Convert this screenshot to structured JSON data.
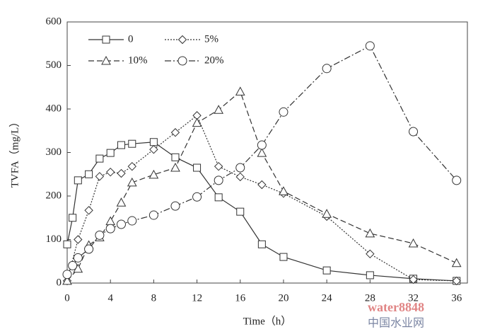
{
  "chart_data": {
    "type": "line",
    "x_label": "Time（h）",
    "y_label": "TVFA（mg/L）",
    "xlim": [
      0,
      37
    ],
    "xticks": [
      0,
      4,
      8,
      12,
      16,
      20,
      24,
      28,
      32,
      36
    ],
    "ylim": [
      0,
      600
    ],
    "yticks": [
      0,
      100,
      200,
      300,
      400,
      500,
      600
    ],
    "series": [
      {
        "name": "0",
        "color": "#333333",
        "marker": "square",
        "dash": "solid",
        "x": [
          0,
          0.5,
          1,
          2,
          3,
          4,
          5,
          6,
          8,
          10,
          12,
          14,
          16,
          18,
          20,
          24,
          28,
          32,
          36
        ],
        "values": [
          89,
          150,
          236,
          250,
          286,
          299,
          317,
          320,
          324,
          289,
          265,
          197,
          164,
          89,
          60,
          29,
          18,
          10,
          5
        ]
      },
      {
        "name": "5%",
        "color": "#333333",
        "marker": "diamond",
        "dash": "dot",
        "x": [
          0,
          1,
          2,
          3,
          4,
          5,
          6,
          8,
          10,
          12,
          14,
          16,
          18,
          20,
          24,
          28,
          32,
          36
        ],
        "values": [
          5,
          100,
          167,
          245,
          255,
          252,
          268,
          307,
          346,
          385,
          268,
          244,
          226,
          206,
          153,
          67,
          8,
          5
        ]
      },
      {
        "name": "10%",
        "color": "#333333",
        "marker": "triangle",
        "dash": "dash",
        "x": [
          0,
          1,
          2,
          3,
          4,
          5,
          6,
          8,
          10,
          12,
          14,
          16,
          18,
          20,
          24,
          28,
          32,
          36
        ],
        "values": [
          5,
          33,
          87,
          105,
          142,
          185,
          231,
          249,
          265,
          368,
          398,
          440,
          299,
          211,
          159,
          114,
          91,
          46
        ]
      },
      {
        "name": "20%",
        "color": "#333333",
        "marker": "circle",
        "dash": "dashdot",
        "x": [
          0,
          0.5,
          1,
          2,
          3,
          4,
          5,
          6,
          8,
          10,
          12,
          14,
          16,
          18,
          20,
          24,
          28,
          32,
          36
        ],
        "values": [
          20,
          40,
          58,
          78,
          110,
          125,
          135,
          143,
          156,
          177,
          198,
          236,
          265,
          317,
          393,
          493,
          545,
          348,
          236
        ]
      }
    ],
    "watermark": [
      "water8848",
      "中国水业网"
    ]
  }
}
